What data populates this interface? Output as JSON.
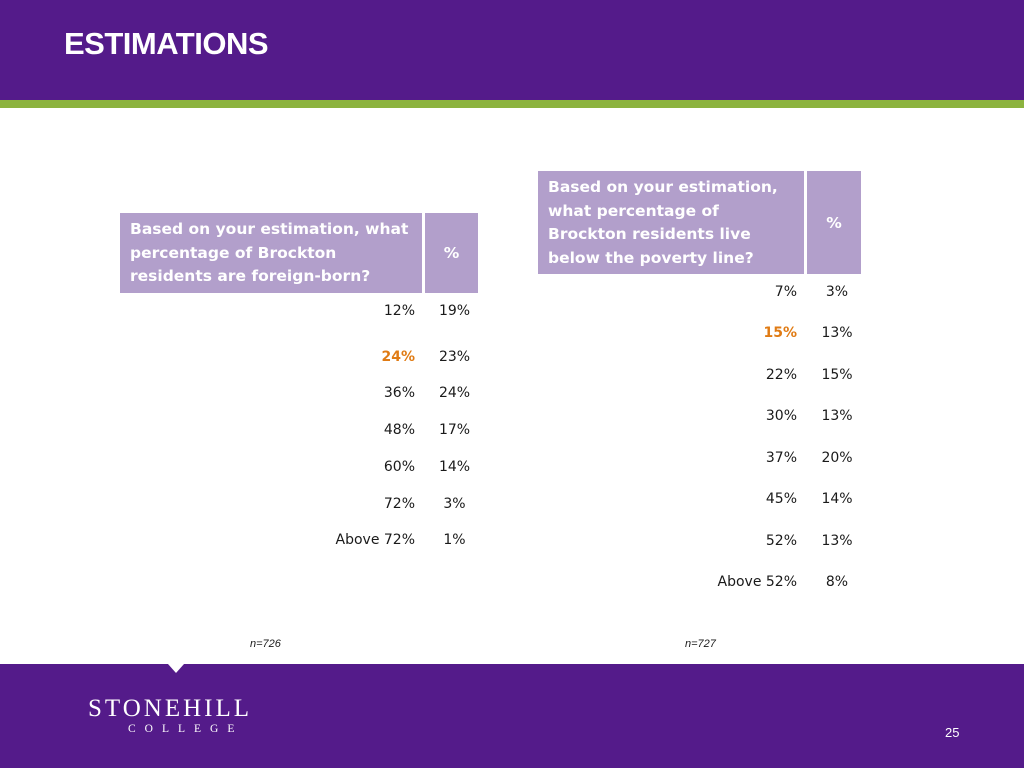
{
  "slide": {
    "title": "ESTIMATIONS",
    "page_number": "25"
  },
  "brand": {
    "name": "STONEHILL",
    "sub": "COLLEGE"
  },
  "colors": {
    "header": "#541b8a",
    "accent": "#8cb33f",
    "table_header": "#b29fcb",
    "highlight": "#e07b14"
  },
  "left_table": {
    "question": "Based on your estimation, what percentage of Brockton residents are foreign-born?",
    "pct_header": "%",
    "rows": [
      {
        "label": "12%",
        "value": "19%"
      },
      {
        "label": "24%",
        "value": "23%"
      },
      {
        "label": "36%",
        "value": "24%"
      },
      {
        "label": "48%",
        "value": "17%"
      },
      {
        "label": "60%",
        "value": "14%"
      },
      {
        "label": "72%",
        "value": "3%"
      },
      {
        "label": "Above 72%",
        "value": "1%"
      }
    ],
    "n": "n=726"
  },
  "right_table": {
    "question": "Based on your estimation, what percentage of Brockton residents live below the poverty line?",
    "pct_header": "%",
    "rows": [
      {
        "label": "7%",
        "value": "3%"
      },
      {
        "label": "15%",
        "value": "13%"
      },
      {
        "label": "22%",
        "value": "15%"
      },
      {
        "label": "30%",
        "value": "13%"
      },
      {
        "label": "37%",
        "value": "20%"
      },
      {
        "label": "45%",
        "value": "14%"
      },
      {
        "label": "52%",
        "value": "13%"
      },
      {
        "label": "Above 52%",
        "value": "8%"
      }
    ],
    "n": "n=727"
  }
}
